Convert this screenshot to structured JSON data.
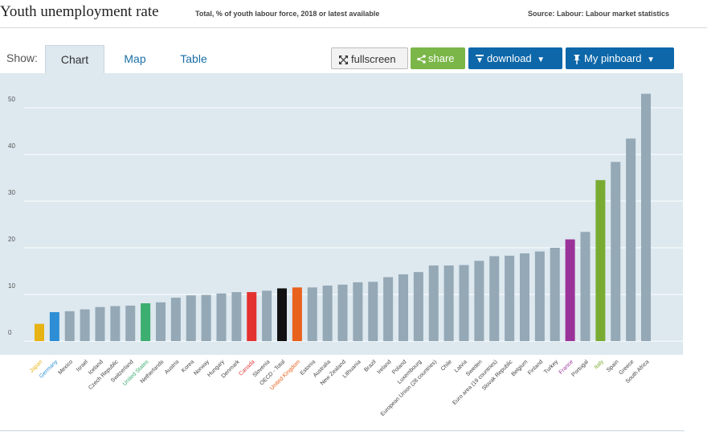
{
  "header": {
    "title": "Youth unemployment rate",
    "subtitle": "Total, % of youth labour force, 2018 or latest available",
    "source": "Source: Labour: Labour market statistics"
  },
  "toolbar": {
    "show_label": "Show:",
    "tabs": [
      "Chart",
      "Map",
      "Table"
    ],
    "fullscreen_label": "fullscreen",
    "share_label": "share",
    "download_label": "download",
    "pinboard_label": "My pinboard"
  },
  "colors": {
    "panel_bg": "#dde8ef",
    "bar_default": "#94a8b6",
    "highlight_japan": "#e7b314",
    "highlight_germany": "#2d8ed6",
    "highlight_us": "#3cae6f",
    "highlight_canada": "#e3322f",
    "highlight_oecd": "#111111",
    "highlight_uk": "#e8611d",
    "highlight_france": "#9a3399",
    "highlight_italy": "#79ab32"
  },
  "chart_data": {
    "type": "bar",
    "title": "Youth unemployment rate",
    "xlabel": "",
    "ylabel": "",
    "ylim": [
      0,
      55
    ],
    "yticks": [
      0,
      10,
      20,
      30,
      40,
      50
    ],
    "grid": true,
    "categories": [
      "Japan",
      "Germany",
      "Mexico",
      "Israel",
      "Iceland",
      "Czech Republic",
      "Switzerland",
      "United States",
      "Netherlands",
      "Austria",
      "Korea",
      "Norway",
      "Hungary",
      "Denmark",
      "Canada",
      "Slovenia",
      "OECD - Total",
      "United Kingdom",
      "Estonia",
      "Australia",
      "New Zealand",
      "Lithuania",
      "Brazil",
      "Ireland",
      "Poland",
      "Luxembourg",
      "European Union (28 countries)",
      "Chile",
      "Latvia",
      "Sweden",
      "Euro area (19 countries)",
      "Slovak Republic",
      "Belgium",
      "Finland",
      "Turkey",
      "France",
      "Portugal",
      "Italy",
      "Spain",
      "Greece",
      "South Africa"
    ],
    "values": [
      3.7,
      6.2,
      6.4,
      6.8,
      7.3,
      7.5,
      7.6,
      8.1,
      8.3,
      9.3,
      9.8,
      9.9,
      10.2,
      10.5,
      10.5,
      10.8,
      11.3,
      11.5,
      11.5,
      11.9,
      12.1,
      12.6,
      12.7,
      13.7,
      14.3,
      14.8,
      16.2,
      16.2,
      16.3,
      17.2,
      18.2,
      18.3,
      18.8,
      19.2,
      20.0,
      21.8,
      23.4,
      34.5,
      38.4,
      43.4,
      53.0
    ],
    "highlights": {
      "Japan": "#e7b314",
      "Germany": "#2d8ed6",
      "United States": "#3cae6f",
      "Canada": "#e3322f",
      "OECD - Total": "#111111",
      "United Kingdom": "#e8611d",
      "France": "#9a3399",
      "Italy": "#79ab32"
    }
  }
}
